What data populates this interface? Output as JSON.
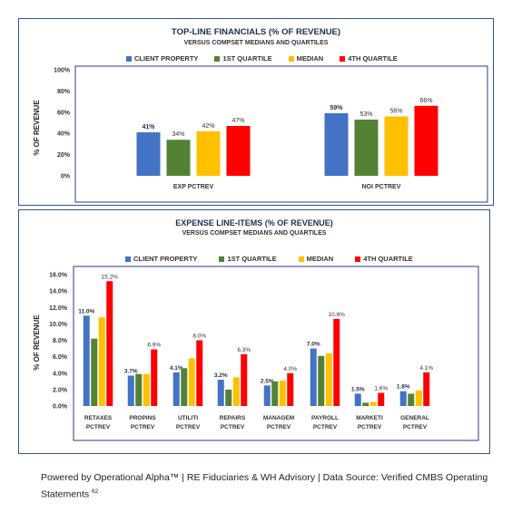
{
  "legend_labels": [
    "CLIENT PROPERTY",
    "1ST QUARTILE",
    "MEDIAN",
    "4TH QUARTILE"
  ],
  "colors": {
    "client": "#4472c4",
    "q1": "#548235",
    "median": "#ffc000",
    "q4": "#ff0000",
    "border": "#2f5597",
    "plot_border": "#2e3b82"
  },
  "footer": {
    "text": "Powered by Operational Alpha™ | RE Fiduciaries & WH Advisory | Data Source: Verified CMBS Operating Statements",
    "superscript": "62"
  },
  "chart_data": [
    {
      "type": "bar",
      "title": "TOP-LINE FINANCIALS (% OF REVENUE)",
      "subtitle": "VERSUS COMPSET MEDIANS AND QUARTILES",
      "ylabel": "% OF REVENUE",
      "xlabel": "",
      "ylim": [
        0,
        100
      ],
      "yticks": [
        "0%",
        "20%",
        "40%",
        "60%",
        "80%",
        "100%"
      ],
      "ytick_values": [
        0,
        20,
        40,
        60,
        80,
        100
      ],
      "grid": false,
      "legend_position": "top",
      "categories": [
        "EXP PCTREV",
        "NOI PCTREV"
      ],
      "series": [
        {
          "name": "CLIENT PROPERTY",
          "values": [
            41,
            59
          ],
          "labels": [
            "41%",
            "59%"
          ]
        },
        {
          "name": "1ST QUARTILE",
          "values": [
            34,
            53
          ],
          "labels": [
            "34%",
            "53%"
          ]
        },
        {
          "name": "MEDIAN",
          "values": [
            42,
            56
          ],
          "labels": [
            "42%",
            "56%"
          ]
        },
        {
          "name": "4TH QUARTILE",
          "values": [
            47,
            66
          ],
          "labels": [
            "47%",
            "66%"
          ]
        }
      ]
    },
    {
      "type": "bar",
      "title": "EXPENSE LINE-ITEMS (% OF REVENUE)",
      "subtitle": "VERSUS COMPSET MEDIANS AND QUARTILES",
      "ylabel": "% OF REVENUE",
      "xlabel": "",
      "ylim": [
        0,
        16
      ],
      "yticks": [
        "0.0%",
        "2.0%",
        "4.0%",
        "6.0%",
        "8.0%",
        "10.0%",
        "12.0%",
        "14.0%",
        "16.0%"
      ],
      "ytick_values": [
        0,
        2,
        4,
        6,
        8,
        10,
        12,
        14,
        16
      ],
      "grid": false,
      "legend_position": "top",
      "categories": [
        [
          "RETAXES",
          "PCTREV"
        ],
        [
          "PROPINS",
          "PCTREV"
        ],
        [
          "UTILITI",
          "PCTREV"
        ],
        [
          "REPAIRS",
          "PCTREV"
        ],
        [
          "MANAGEM",
          "PCTREV"
        ],
        [
          "PAYROLL",
          "PCTREV"
        ],
        [
          "MARKETI",
          "PCTREV"
        ],
        [
          "GENERAL",
          "PCTREV"
        ]
      ],
      "series": [
        {
          "name": "CLIENT PROPERTY",
          "values": [
            11.0,
            3.7,
            4.1,
            3.2,
            2.5,
            7.0,
            1.5,
            1.8
          ],
          "labels": [
            "11.0%",
            "3.7%",
            "4.1%",
            "3.2%",
            "2.5%",
            "7.0%",
            "1.5%",
            "1.8%"
          ]
        },
        {
          "name": "1ST QUARTILE",
          "values": [
            8.2,
            3.9,
            4.6,
            2.0,
            3.0,
            6.1,
            0.4,
            1.5
          ],
          "labels": [
            "",
            "",
            "",
            "",
            "",
            "",
            "",
            ""
          ]
        },
        {
          "name": "MEDIAN",
          "values": [
            10.8,
            3.9,
            5.8,
            3.5,
            3.1,
            6.4,
            0.5,
            1.9
          ],
          "labels": [
            "",
            "",
            "",
            "",
            "",
            "",
            "",
            ""
          ]
        },
        {
          "name": "4TH QUARTILE",
          "values": [
            15.2,
            6.9,
            8.0,
            6.3,
            4.0,
            10.6,
            1.6,
            4.1
          ],
          "labels": [
            "15.2%",
            "6.9%",
            "8.0%",
            "6.3%",
            "4.0%",
            "10.6%",
            "1.6%",
            "4.1%"
          ]
        }
      ]
    }
  ]
}
